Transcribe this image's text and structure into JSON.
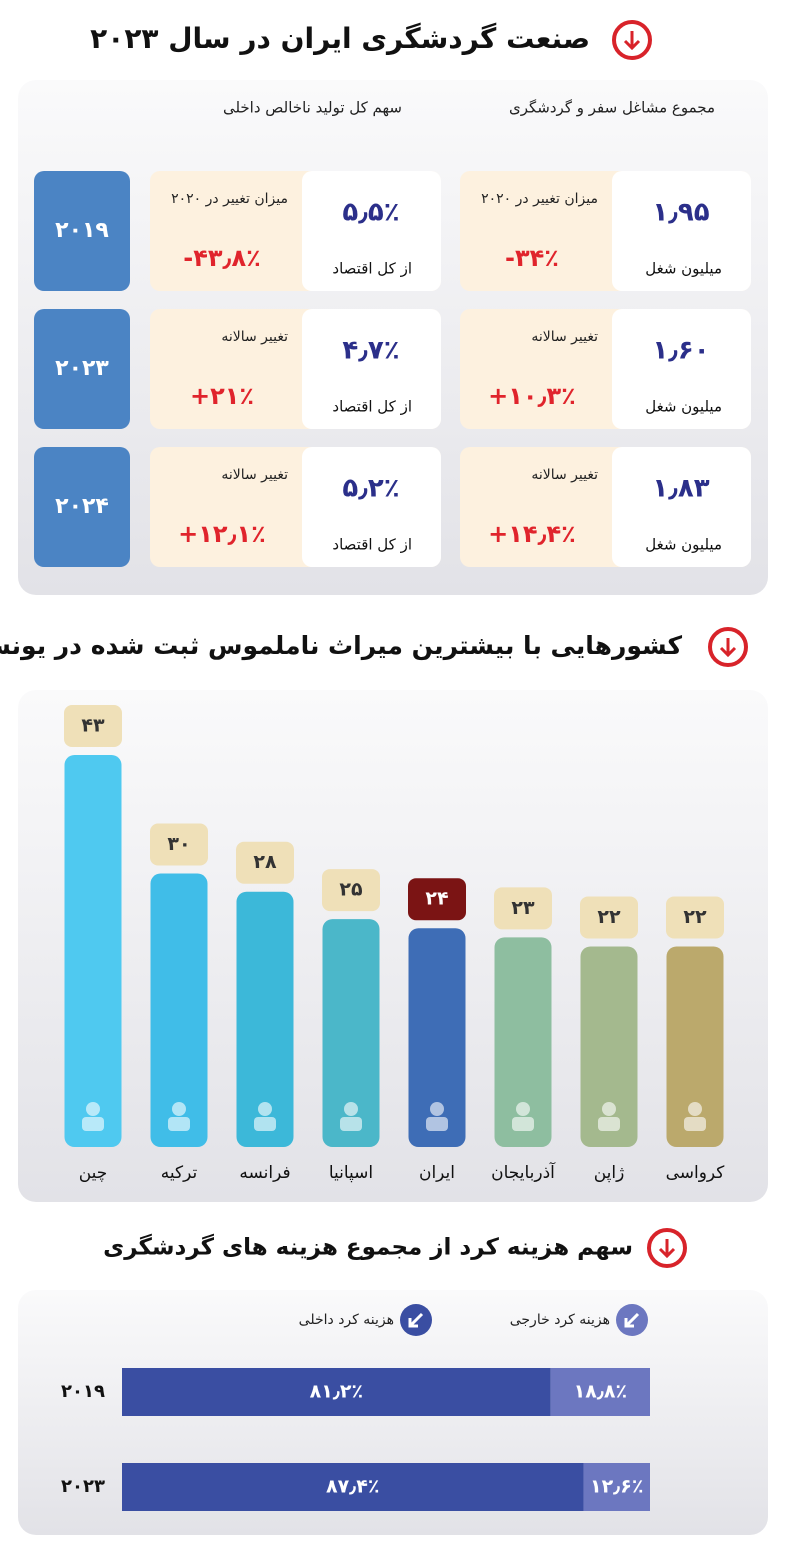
{
  "title": "صنعت گردشگری ایران در سال ۲۰۲۳",
  "stats": {
    "headers": {
      "jobs": "مجموع مشاغل سفر و گردشگری",
      "gdp": "سهم کل تولید ناخالص داخلی"
    },
    "rows": [
      {
        "year": "۲۰۱۹",
        "jobs": {
          "value": "۱٫۹۵",
          "unit": "میلیون شغل",
          "change_label": "میزان تغییر در ۲۰۲۰",
          "change": "-۳۴٪"
        },
        "gdp": {
          "value": "۵٫۵٪",
          "unit": "از کل اقتصاد",
          "change_label": "میزان تغییر در ۲۰۲۰",
          "change": "-۴۳٫۸٪"
        }
      },
      {
        "year": "۲۰۲۳",
        "jobs": {
          "value": "۱٫۶۰",
          "unit": "میلیون شغل",
          "change_label": "تغییر سالانه",
          "change": "+۱۰٫۳٪"
        },
        "gdp": {
          "value": "۴٫۷٪",
          "unit": "از کل اقتصاد",
          "change_label": "تغییر سالانه",
          "change": "+۲۱٪"
        }
      },
      {
        "year": "۲۰۲۴",
        "jobs": {
          "value": "۱٫۸۳",
          "unit": "میلیون شغل",
          "change_label": "تغییر سالانه",
          "change": "+۱۴٫۴٪"
        },
        "gdp": {
          "value": "۵٫۲٪",
          "unit": "از کل اقتصاد",
          "change_label": "تغییر سالانه",
          "change": "+۱۲٫۱٪"
        }
      }
    ]
  },
  "chart_data": [
    {
      "type": "bar",
      "title": "کشورهایی با بیشترین میراث ناملموس ثبت شده در یونسکو",
      "categories": [
        "چین",
        "ترکیه",
        "فرانسه",
        "اسپانیا",
        "ایران",
        "آذربایجان",
        "ژاپن",
        "کرواسی"
      ],
      "values": [
        43,
        30,
        28,
        25,
        24,
        23,
        22,
        22
      ],
      "value_labels": [
        "۴۳",
        "۳۰",
        "۲۸",
        "۲۵",
        "۲۴",
        "۲۳",
        "۲۲",
        "۲۲"
      ],
      "colors": [
        "#4fc9f0",
        "#40bde8",
        "#3cb8d9",
        "#4bb7c9",
        "#3e6db6",
        "#8ebea0",
        "#a4b98e",
        "#bba96c"
      ],
      "label_fill": [
        "#efe0b8",
        "#efe0b8",
        "#efe0b8",
        "#efe0b8",
        "#7b1414",
        "#efe0b8",
        "#efe0b8",
        "#efe0b8"
      ],
      "label_text_colors": [
        "#333",
        "#333",
        "#333",
        "#333",
        "#fff",
        "#333",
        "#333",
        "#333"
      ]
    },
    {
      "type": "stacked-bar",
      "orientation": "horizontal",
      "title": "سهم هزینه کرد از مجموع هزینه های گردشگری",
      "categories": [
        "۲۰۱۹",
        "۲۰۲۳"
      ],
      "series": [
        {
          "name": "هزینه کرد داخلی",
          "color": "#3a4ea2",
          "values": [
            81.2,
            87.4
          ],
          "value_labels": [
            "۸۱٫۲٪",
            "۸۷٫۴٪"
          ]
        },
        {
          "name": "هزینه کرد خارجی",
          "color": "#6c77c0",
          "values": [
            18.8,
            12.6
          ],
          "value_labels": [
            "۱۸٫۸٪",
            "۱۲٫۶٪"
          ]
        }
      ]
    }
  ]
}
